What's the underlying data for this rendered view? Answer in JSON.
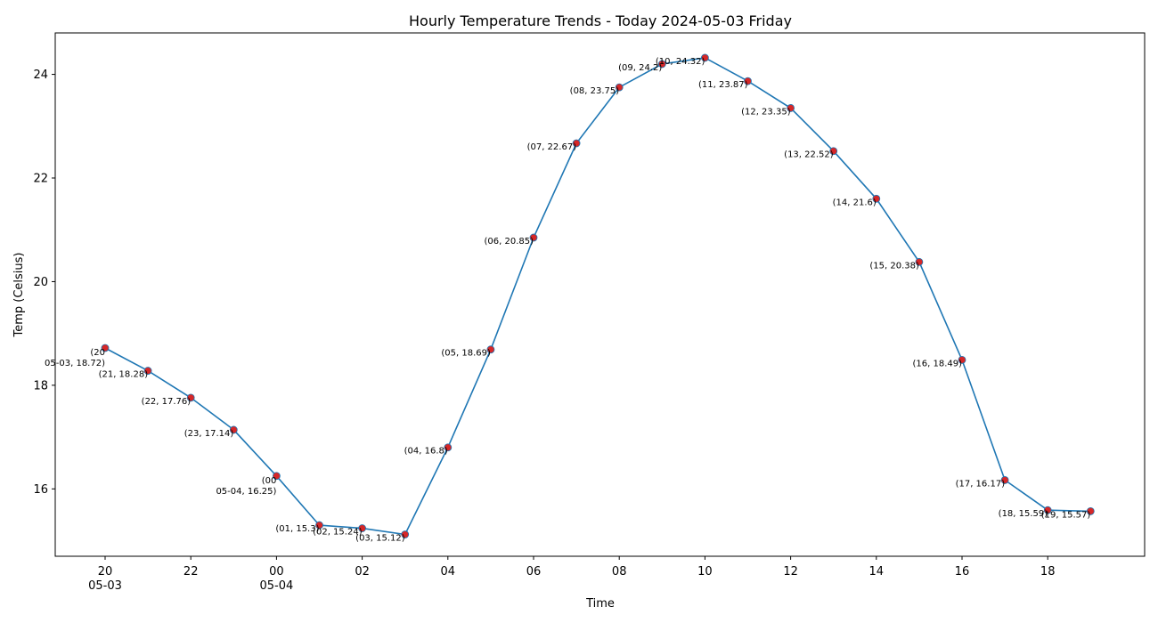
{
  "chart_data": {
    "type": "line",
    "title": "Hourly Temperature Trends - Today 2024-05-03 Friday",
    "xlabel": "Time",
    "ylabel": "Temp (Celsius)",
    "ylim": [
      14.7,
      24.8
    ],
    "yticks": [
      16,
      18,
      20,
      22,
      24
    ],
    "grid": false,
    "x_ticks": [
      {
        "label": "20",
        "sublabel": "05-03"
      },
      {
        "label": "22",
        "sublabel": ""
      },
      {
        "label": "00",
        "sublabel": "05-04"
      },
      {
        "label": "02",
        "sublabel": ""
      },
      {
        "label": "04",
        "sublabel": ""
      },
      {
        "label": "06",
        "sublabel": ""
      },
      {
        "label": "08",
        "sublabel": ""
      },
      {
        "label": "10",
        "sublabel": ""
      },
      {
        "label": "12",
        "sublabel": ""
      },
      {
        "label": "14",
        "sublabel": ""
      },
      {
        "label": "16",
        "sublabel": ""
      },
      {
        "label": "18",
        "sublabel": ""
      }
    ],
    "x": [
      "2024-05-03 20:00",
      "2024-05-03 21:00",
      "2024-05-03 22:00",
      "2024-05-03 23:00",
      "2024-05-04 00:00",
      "2024-05-04 01:00",
      "2024-05-04 02:00",
      "2024-05-04 03:00",
      "2024-05-04 04:00",
      "2024-05-04 05:00",
      "2024-05-04 06:00",
      "2024-05-04 07:00",
      "2024-05-04 08:00",
      "2024-05-04 09:00",
      "2024-05-04 10:00",
      "2024-05-04 11:00",
      "2024-05-04 12:00",
      "2024-05-04 13:00",
      "2024-05-04 14:00",
      "2024-05-04 15:00",
      "2024-05-04 16:00",
      "2024-05-04 17:00",
      "2024-05-04 18:00",
      "2024-05-04 19:00"
    ],
    "values": [
      18.72,
      18.28,
      17.76,
      17.14,
      16.25,
      15.3,
      15.24,
      15.12,
      16.8,
      18.69,
      20.85,
      22.67,
      23.75,
      24.2,
      24.32,
      23.87,
      23.35,
      22.52,
      21.6,
      20.38,
      18.49,
      16.17,
      15.59,
      15.57
    ],
    "point_labels": [
      "(20\n05-03, 18.72)",
      "(21, 18.28)",
      "(22, 17.76)",
      "(23, 17.14)",
      "(00\n05-04, 16.25)",
      "(01, 15.3)",
      "(02, 15.24)",
      "(03, 15.12)",
      "(04, 16.8)",
      "(05, 18.69)",
      "(06, 20.85)",
      "(07, 22.67)",
      "(08, 23.75)",
      "(09, 24.2)",
      "(10, 24.32)",
      "(11, 23.87)",
      "(12, 23.35)",
      "(13, 22.52)",
      "(14, 21.6)",
      "(15, 20.38)",
      "(16, 18.49)",
      "(17, 16.17)",
      "(18, 15.59)",
      "(19, 15.57)"
    ],
    "line_color": "#1f77b4",
    "marker_color": "#d62728"
  }
}
